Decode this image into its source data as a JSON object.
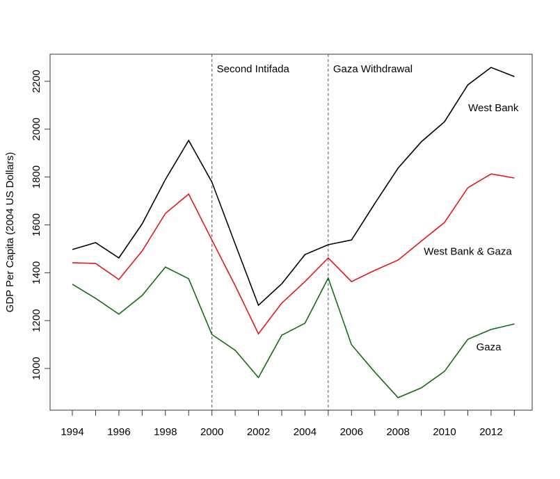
{
  "chart_data": {
    "type": "line",
    "title": "",
    "xlabel": "",
    "ylabel": "GDP Per Capita (2004 US Dollars)",
    "xlim": [
      1993.06,
      2013.8
    ],
    "ylim": [
      820,
      2310
    ],
    "x": [
      1994,
      1995,
      1996,
      1997,
      1998,
      1999,
      2000,
      2001,
      2002,
      2003,
      2004,
      2005,
      2006,
      2007,
      2008,
      2009,
      2010,
      2011,
      2012,
      2013
    ],
    "x_tick_labels": [
      "1994",
      "1996",
      "1998",
      "2000",
      "2002",
      "2004",
      "2006",
      "2008",
      "2010",
      "2012"
    ],
    "y_tick_labels": [
      "1000",
      "1200",
      "1400",
      "1600",
      "1800",
      "2000",
      "2200"
    ],
    "grid": false,
    "series": [
      {
        "name": "West Bank",
        "color": "#000000",
        "values": [
          1497,
          1526,
          1462,
          1604,
          1790,
          1953,
          1779,
          1520,
          1264,
          1354,
          1476,
          1517,
          1537,
          1689,
          1837,
          1947,
          2031,
          2185,
          2258,
          2220
        ]
      },
      {
        "name": "West Bank & Gaza",
        "color": "#e8141b",
        "values": [
          1442,
          1439,
          1372,
          1491,
          1648,
          1729,
          1537,
          1346,
          1145,
          1273,
          1363,
          1462,
          1363,
          1410,
          1453,
          1532,
          1610,
          1755,
          1813,
          1796
        ]
      },
      {
        "name": "Gaza",
        "color": "#0f6e0f",
        "values": [
          1352,
          1293,
          1227,
          1305,
          1424,
          1375,
          1142,
          1076,
          962,
          1139,
          1189,
          1378,
          1099,
          985,
          878,
          919,
          988,
          1122,
          1163,
          1186
        ]
      }
    ],
    "vlines": [
      {
        "x": 2000,
        "label": "Second Intifada"
      },
      {
        "x": 2005,
        "label": "Gaza Withdrawal"
      }
    ],
    "series_labels": [
      {
        "text": "West Bank",
        "x": 2012.1,
        "y": 2090
      },
      {
        "text": "West Bank & Gaza",
        "x": 2011.0,
        "y": 1490
      },
      {
        "text": "Gaza",
        "x": 2011.9,
        "y": 1090
      }
    ]
  }
}
